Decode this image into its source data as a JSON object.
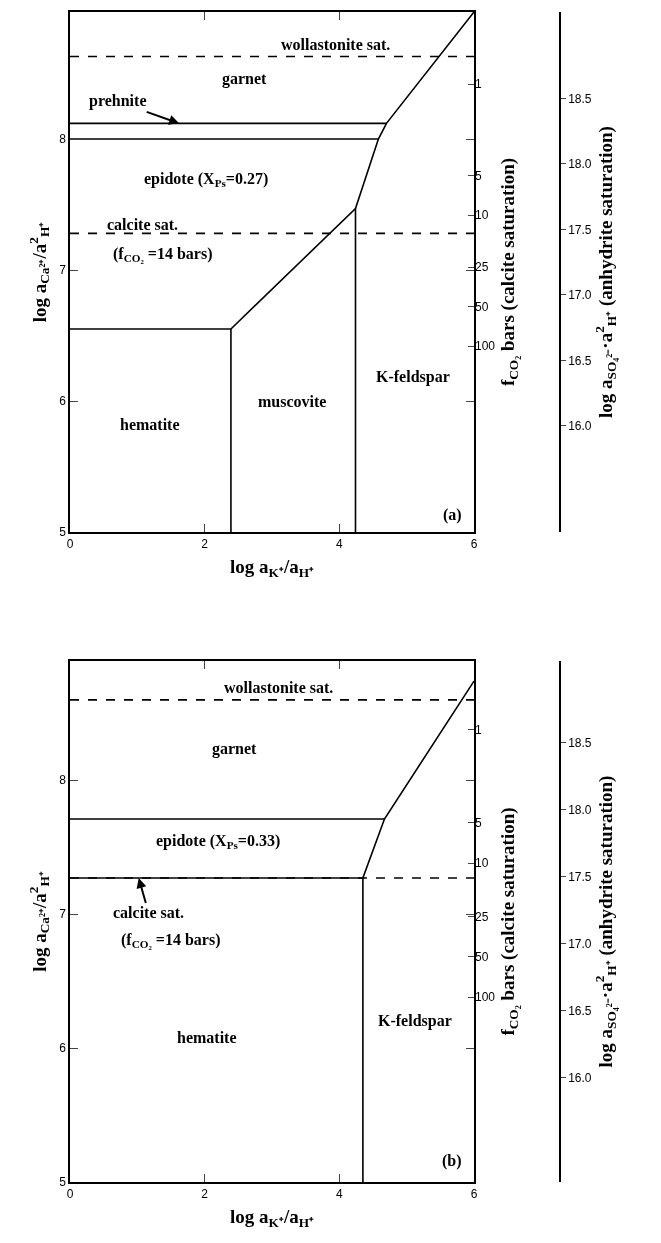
{
  "chart_data": [
    {
      "type": "line",
      "xlabel": "log a$_{K⁺}$/a$_{H⁺}$",
      "ylabel": "log a$_{Ca²⁺}$/a$^{2}$$_{H⁺}$",
      "y2label": "f$_{CO₂}$ bars (calcite saturation)",
      "y3label": "log a$_{SO₄²⁻}$·a$^{2}$$_{H⁺}$ (anhydrite saturation)",
      "xlim": [
        0,
        6
      ],
      "xticks": [
        0,
        2,
        4,
        6
      ],
      "ylim": [
        5,
        8.97
      ],
      "yticks": [
        5,
        6,
        7,
        8
      ],
      "log": "y2",
      "y2lim": [
        2630,
        0.282
      ],
      "y2ticks": [
        1,
        5,
        10,
        25,
        50,
        100
      ],
      "y3lim": [
        15.19,
        19.16
      ],
      "y3ticks": [
        {
          "value": 16,
          "label": "16.0"
        },
        {
          "value": 16.5,
          "label": "16.5"
        },
        {
          "value": 17,
          "label": "17.0"
        },
        {
          "value": 17.5,
          "label": "17.5"
        },
        {
          "value": 18,
          "label": "18.0"
        },
        {
          "value": 18.5,
          "label": "18.5"
        }
      ],
      "series": [
        {
          "color": "#000000",
          "line_style": "dashed",
          "x": [
            0,
            6
          ],
          "values": [
            8.63,
            8.63
          ]
        },
        {
          "color": "#000000",
          "line_style": "dashed",
          "x": [
            0,
            6
          ],
          "values": [
            7.28,
            7.28
          ]
        },
        {
          "color": "#000000",
          "line_style": "solid",
          "x": [
            0,
            4.7
          ],
          "values": [
            8.12,
            8.12
          ]
        },
        {
          "color": "#000000",
          "line_style": "solid",
          "x": [
            0,
            4.58
          ],
          "values": [
            8.0,
            8.0
          ]
        },
        {
          "color": "#000000",
          "line_style": "solid",
          "x": [
            6,
            4.7,
            4.58,
            4.24,
            2.39
          ],
          "values": [
            8.97,
            8.12,
            8.0,
            7.47,
            6.55
          ]
        },
        {
          "color": "#000000",
          "line_style": "solid",
          "x": [
            4.24,
            4.24
          ],
          "values": [
            7.47,
            5
          ]
        },
        {
          "color": "#000000",
          "line_style": "solid",
          "x": [
            0,
            2.39,
            2.39
          ],
          "values": [
            6.55,
            6.55,
            5
          ]
        }
      ],
      "annotations": [
        "wollastonite sat.",
        "garnet",
        {
          "text": "prehnite",
          "x": 1.62,
          "y": 8.12
        },
        "epidote (X$_{Ps}$=0.27)",
        "calcite sat.",
        "(f$_{CO₂}$ =14 bars)",
        "hematite",
        "muscovite",
        "K-feldspar",
        "(a)"
      ]
    },
    {
      "type": "line",
      "xlabel": "log a$_{K⁺}$/a$_{H⁺}$",
      "ylabel": "log a$_{Ca²⁺}$/a$^{2}$$_{H⁺}$",
      "y2label": "f$_{CO₂}$ bars (calcite saturation)",
      "y3label": "log a$_{SO₄²⁻}$·a$^{2}$$_{H⁺}$ (anhydrite saturation)",
      "xlim": [
        0,
        6
      ],
      "xticks": [
        0,
        2,
        4,
        6
      ],
      "ylim": [
        5,
        8.89
      ],
      "yticks": [
        5,
        6,
        7,
        8
      ],
      "log": "y2",
      "y2lim": [
        2400,
        0.309
      ],
      "y2ticks": [
        1,
        5,
        10,
        25,
        50,
        100
      ],
      "y3lim": [
        15.22,
        19.11
      ],
      "y3ticks": [
        {
          "value": 16,
          "label": "16.0"
        },
        {
          "value": 16.5,
          "label": "16.5"
        },
        {
          "value": 17,
          "label": "17.0"
        },
        {
          "value": 17.5,
          "label": "17.5"
        },
        {
          "value": 18,
          "label": "18.0"
        },
        {
          "value": 18.5,
          "label": "18.5"
        }
      ],
      "series": [
        {
          "color": "#000000",
          "line_style": "dashed",
          "x": [
            0,
            6
          ],
          "values": [
            8.6,
            8.6
          ]
        },
        {
          "color": "#000000",
          "line_style": "dashed",
          "x": [
            0,
            6
          ],
          "values": [
            7.27,
            7.27
          ]
        },
        {
          "color": "#000000",
          "line_style": "solid",
          "x": [
            0,
            4.67
          ],
          "values": [
            7.71,
            7.71
          ]
        },
        {
          "color": "#000000",
          "line_style": "solid",
          "x": [
            0,
            4.35
          ],
          "values": [
            7.27,
            7.27
          ]
        },
        {
          "color": "#000000",
          "line_style": "solid",
          "x": [
            6,
            4.67,
            4.35,
            4.35
          ],
          "values": [
            8.74,
            7.71,
            7.27,
            5
          ]
        }
      ],
      "annotations": [
        "wollastonite sat.",
        "garnet",
        "epidote (X$_{Ps}$=0.33)",
        {
          "text": "calcite sat.",
          "x": 1.02,
          "y": 7.27
        },
        "(f$_{CO₂}$ =14 bars)",
        "hematite",
        "K-feldspar",
        "(b)"
      ]
    }
  ]
}
